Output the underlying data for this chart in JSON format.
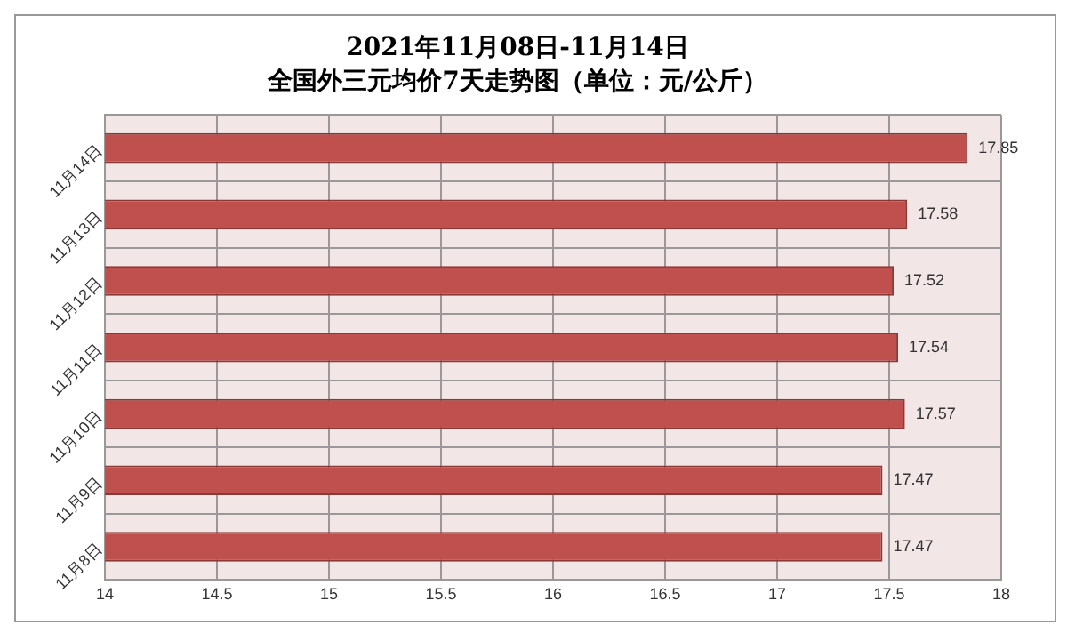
{
  "chart_data": {
    "type": "bar",
    "orientation": "horizontal",
    "title": "2021年11月08日-11月14日",
    "subtitle": "全国外三元均价7天走势图（单位：元/公斤）",
    "categories": [
      "11月14日",
      "11月13日",
      "11月12日",
      "11月11日",
      "11月10日",
      "11月9日",
      "11月8日"
    ],
    "values": [
      17.85,
      17.58,
      17.52,
      17.54,
      17.57,
      17.47,
      17.47
    ],
    "color": "#c0504d",
    "xlim": [
      14,
      18
    ],
    "xticks": [
      14,
      14.5,
      15,
      15.5,
      16,
      16.5,
      17,
      17.5,
      18
    ],
    "grid": true,
    "data_labels": true,
    "legend": false
  }
}
